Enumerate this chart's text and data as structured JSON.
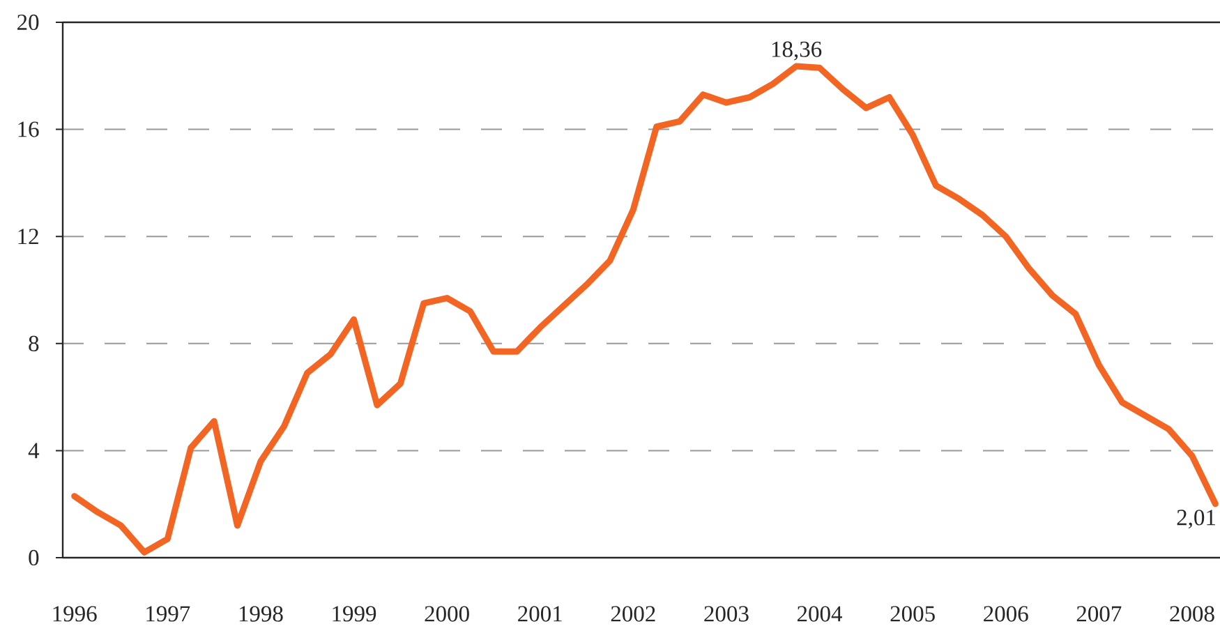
{
  "chart_data": {
    "type": "line",
    "categories": [
      "1996",
      null,
      null,
      null,
      "1997",
      null,
      null,
      null,
      "1998",
      null,
      null,
      null,
      "1999",
      null,
      null,
      null,
      "2000",
      null,
      null,
      null,
      "2001",
      null,
      null,
      null,
      "2002",
      null,
      null,
      null,
      "2003",
      null,
      null,
      null,
      "2004",
      null,
      null,
      null,
      "2005",
      null,
      null,
      null,
      "2006",
      null,
      null,
      null,
      "2007",
      null,
      null,
      null,
      "2008",
      null
    ],
    "series": [
      {
        "color": "#f26522",
        "values": [
          2.3,
          1.7,
          1.2,
          0.2,
          0.7,
          4.1,
          5.1,
          1.2,
          3.6,
          4.9,
          6.9,
          7.6,
          8.9,
          5.7,
          6.5,
          9.5,
          9.7,
          9.2,
          7.7,
          7.7,
          8.6,
          9.4,
          10.2,
          11.1,
          13.0,
          16.1,
          16.3,
          17.3,
          17.0,
          17.2,
          17.7,
          18.36,
          18.3,
          17.5,
          16.8,
          17.2,
          15.8,
          13.9,
          13.4,
          12.8,
          12.0,
          10.8,
          9.8,
          9.1,
          7.2,
          5.8,
          5.3,
          4.8,
          3.8,
          2.01
        ],
        "value_labels": [
          null,
          null,
          null,
          null,
          null,
          null,
          null,
          null,
          null,
          null,
          null,
          null,
          null,
          null,
          null,
          null,
          null,
          null,
          null,
          null,
          null,
          null,
          null,
          null,
          null,
          null,
          null,
          null,
          null,
          null,
          null,
          "18,36",
          null,
          null,
          null,
          null,
          null,
          null,
          null,
          null,
          null,
          null,
          null,
          null,
          null,
          null,
          null,
          null,
          null,
          "2,01"
        ]
      }
    ],
    "ylim": [
      0,
      20
    ],
    "yticks": [
      0,
      4,
      8,
      12,
      16,
      20
    ],
    "grid": "y"
  }
}
